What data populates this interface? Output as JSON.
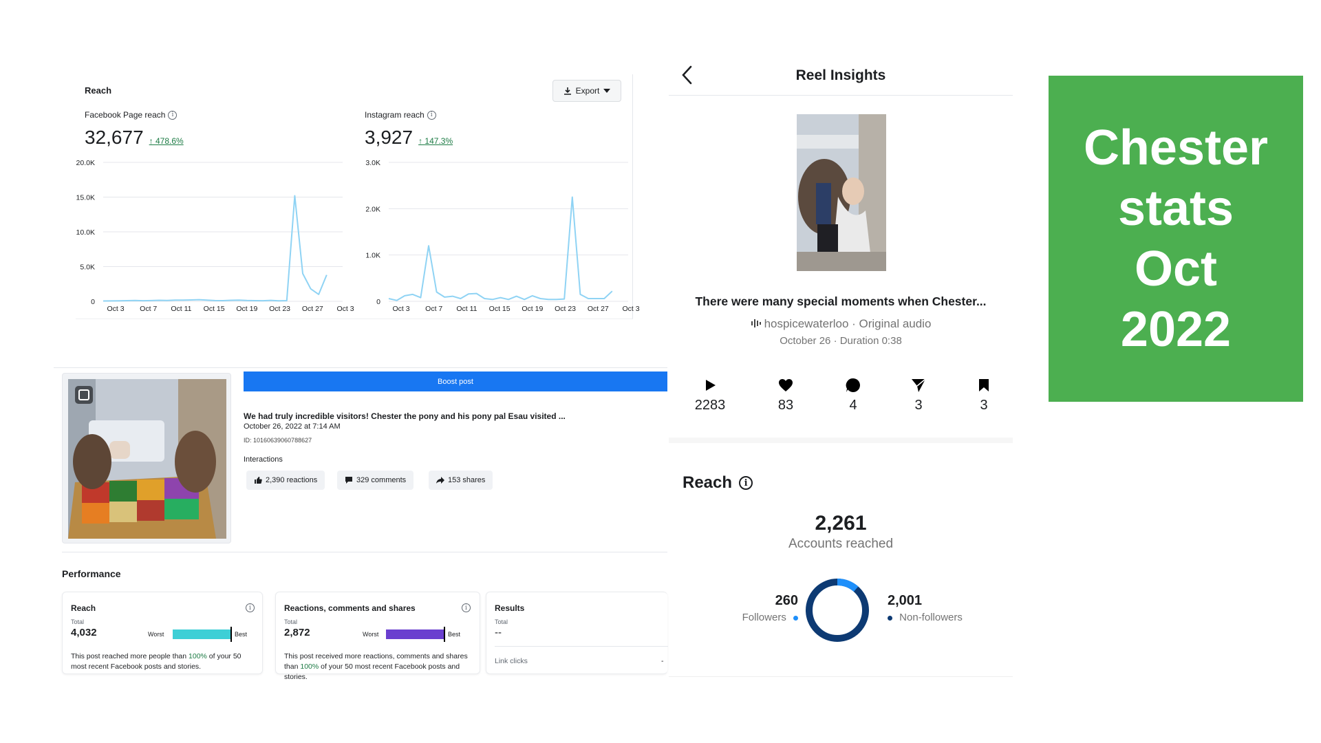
{
  "reach_section": {
    "title": "Reach",
    "export_label": "Export",
    "facebook": {
      "label": "Facebook Page reach",
      "value": "32,677",
      "change": "478.6%"
    },
    "instagram": {
      "label": "Instagram reach",
      "value": "3,927",
      "change": "147.3%"
    }
  },
  "chart_data": [
    {
      "type": "line",
      "color": "#8fd3f4",
      "x_tick_labels": [
        "Oct 3",
        "Oct 7",
        "Oct 11",
        "Oct 15",
        "Oct 19",
        "Oct 23",
        "Oct 27",
        "Oct 3"
      ],
      "y_tick_labels": [
        "20.0K",
        "15.0K",
        "10.0K",
        "5.0K",
        "0"
      ],
      "ylim": [
        0,
        20000
      ],
      "x": [
        1,
        2,
        3,
        4,
        5,
        6,
        7,
        8,
        9,
        10,
        11,
        12,
        13,
        14,
        15,
        16,
        17,
        18,
        19,
        20,
        21,
        22,
        23,
        24,
        25,
        26,
        27,
        28,
        29,
        30,
        31
      ],
      "values": [
        50,
        60,
        80,
        100,
        120,
        90,
        110,
        150,
        130,
        170,
        180,
        200,
        240,
        170,
        110,
        100,
        150,
        180,
        120,
        100,
        90,
        140,
        80,
        100,
        15200,
        4000,
        1800,
        1000,
        3800,
        null,
        null
      ],
      "grid": true
    },
    {
      "type": "line",
      "color": "#8fd3f4",
      "x_tick_labels": [
        "Oct 3",
        "Oct 7",
        "Oct 11",
        "Oct 15",
        "Oct 19",
        "Oct 23",
        "Oct 27",
        "Oct 3"
      ],
      "y_tick_labels": [
        "3.0K",
        "2.0K",
        "1.0K",
        "0"
      ],
      "ylim": [
        0,
        3000
      ],
      "x": [
        1,
        2,
        3,
        4,
        5,
        6,
        7,
        8,
        9,
        10,
        11,
        12,
        13,
        14,
        15,
        16,
        17,
        18,
        19,
        20,
        21,
        22,
        23,
        24,
        25,
        26,
        27,
        28,
        29,
        30,
        31
      ],
      "values": [
        60,
        20,
        120,
        150,
        80,
        1200,
        200,
        90,
        110,
        60,
        160,
        170,
        60,
        40,
        80,
        40,
        110,
        40,
        120,
        60,
        40,
        40,
        50,
        2250,
        150,
        60,
        60,
        60,
        220,
        null,
        null
      ],
      "grid": true
    }
  ],
  "post": {
    "boost_label": "Boost post",
    "text": "We had truly incredible visitors! Chester the pony and his pony pal Esau visited ...",
    "date": "October 26, 2022 at 7:14 AM",
    "id": "ID: 10160639060788627",
    "interactions_label": "Interactions",
    "reactions": "2,390 reactions",
    "comments": "329 comments",
    "shares": "153 shares"
  },
  "performance": {
    "title": "Performance",
    "reach_card": {
      "title": "Reach",
      "total_label": "Total",
      "total": "4,032",
      "worst": "Worst",
      "best": "Best",
      "bar_color": "#3ecfd6",
      "level": 1.0,
      "desc_pre": "This post reached more people than ",
      "desc_pct": "100%",
      "desc_post": " of your 50 most recent Facebook posts and stories."
    },
    "engagement_card": {
      "title": "Reactions, comments and shares",
      "total_label": "Total",
      "total": "2,872",
      "worst": "Worst",
      "best": "Best",
      "bar_color": "#6a3fcf",
      "level": 1.0,
      "desc_pre": "This post received more reactions, comments and shares than ",
      "desc_pct": "100%",
      "desc_post": " of your 50 most recent Facebook posts and stories."
    },
    "results_card": {
      "title": "Results",
      "total_label": "Total",
      "total": "--",
      "link_clicks": "Link clicks",
      "link_clicks_value": "-"
    }
  },
  "reel": {
    "title": "Reel Insights",
    "caption": "There were many special moments when Chester...",
    "audio": "hospicewaterloo · Original audio",
    "meta": "October 26 · Duration 0:38",
    "stats": [
      {
        "icon": "play-icon",
        "value": "2283"
      },
      {
        "icon": "heart-icon",
        "value": "83"
      },
      {
        "icon": "comment-icon",
        "value": "4"
      },
      {
        "icon": "send-icon",
        "value": "3"
      },
      {
        "icon": "bookmark-icon",
        "value": "3"
      }
    ],
    "reach_heading": "Reach",
    "accounts_reached": "2,261",
    "accounts_reached_label": "Accounts reached",
    "followers": "260",
    "followers_label": "Followers",
    "followers_color": "#1e8ffa",
    "non_followers": "2,001",
    "non_followers_label": "Non-followers",
    "non_followers_color": "#0d3a73",
    "followers_fraction": 0.115
  },
  "title_card": {
    "lines": [
      "Chester",
      "stats",
      "Oct",
      "2022"
    ],
    "color": "#4caf50"
  }
}
